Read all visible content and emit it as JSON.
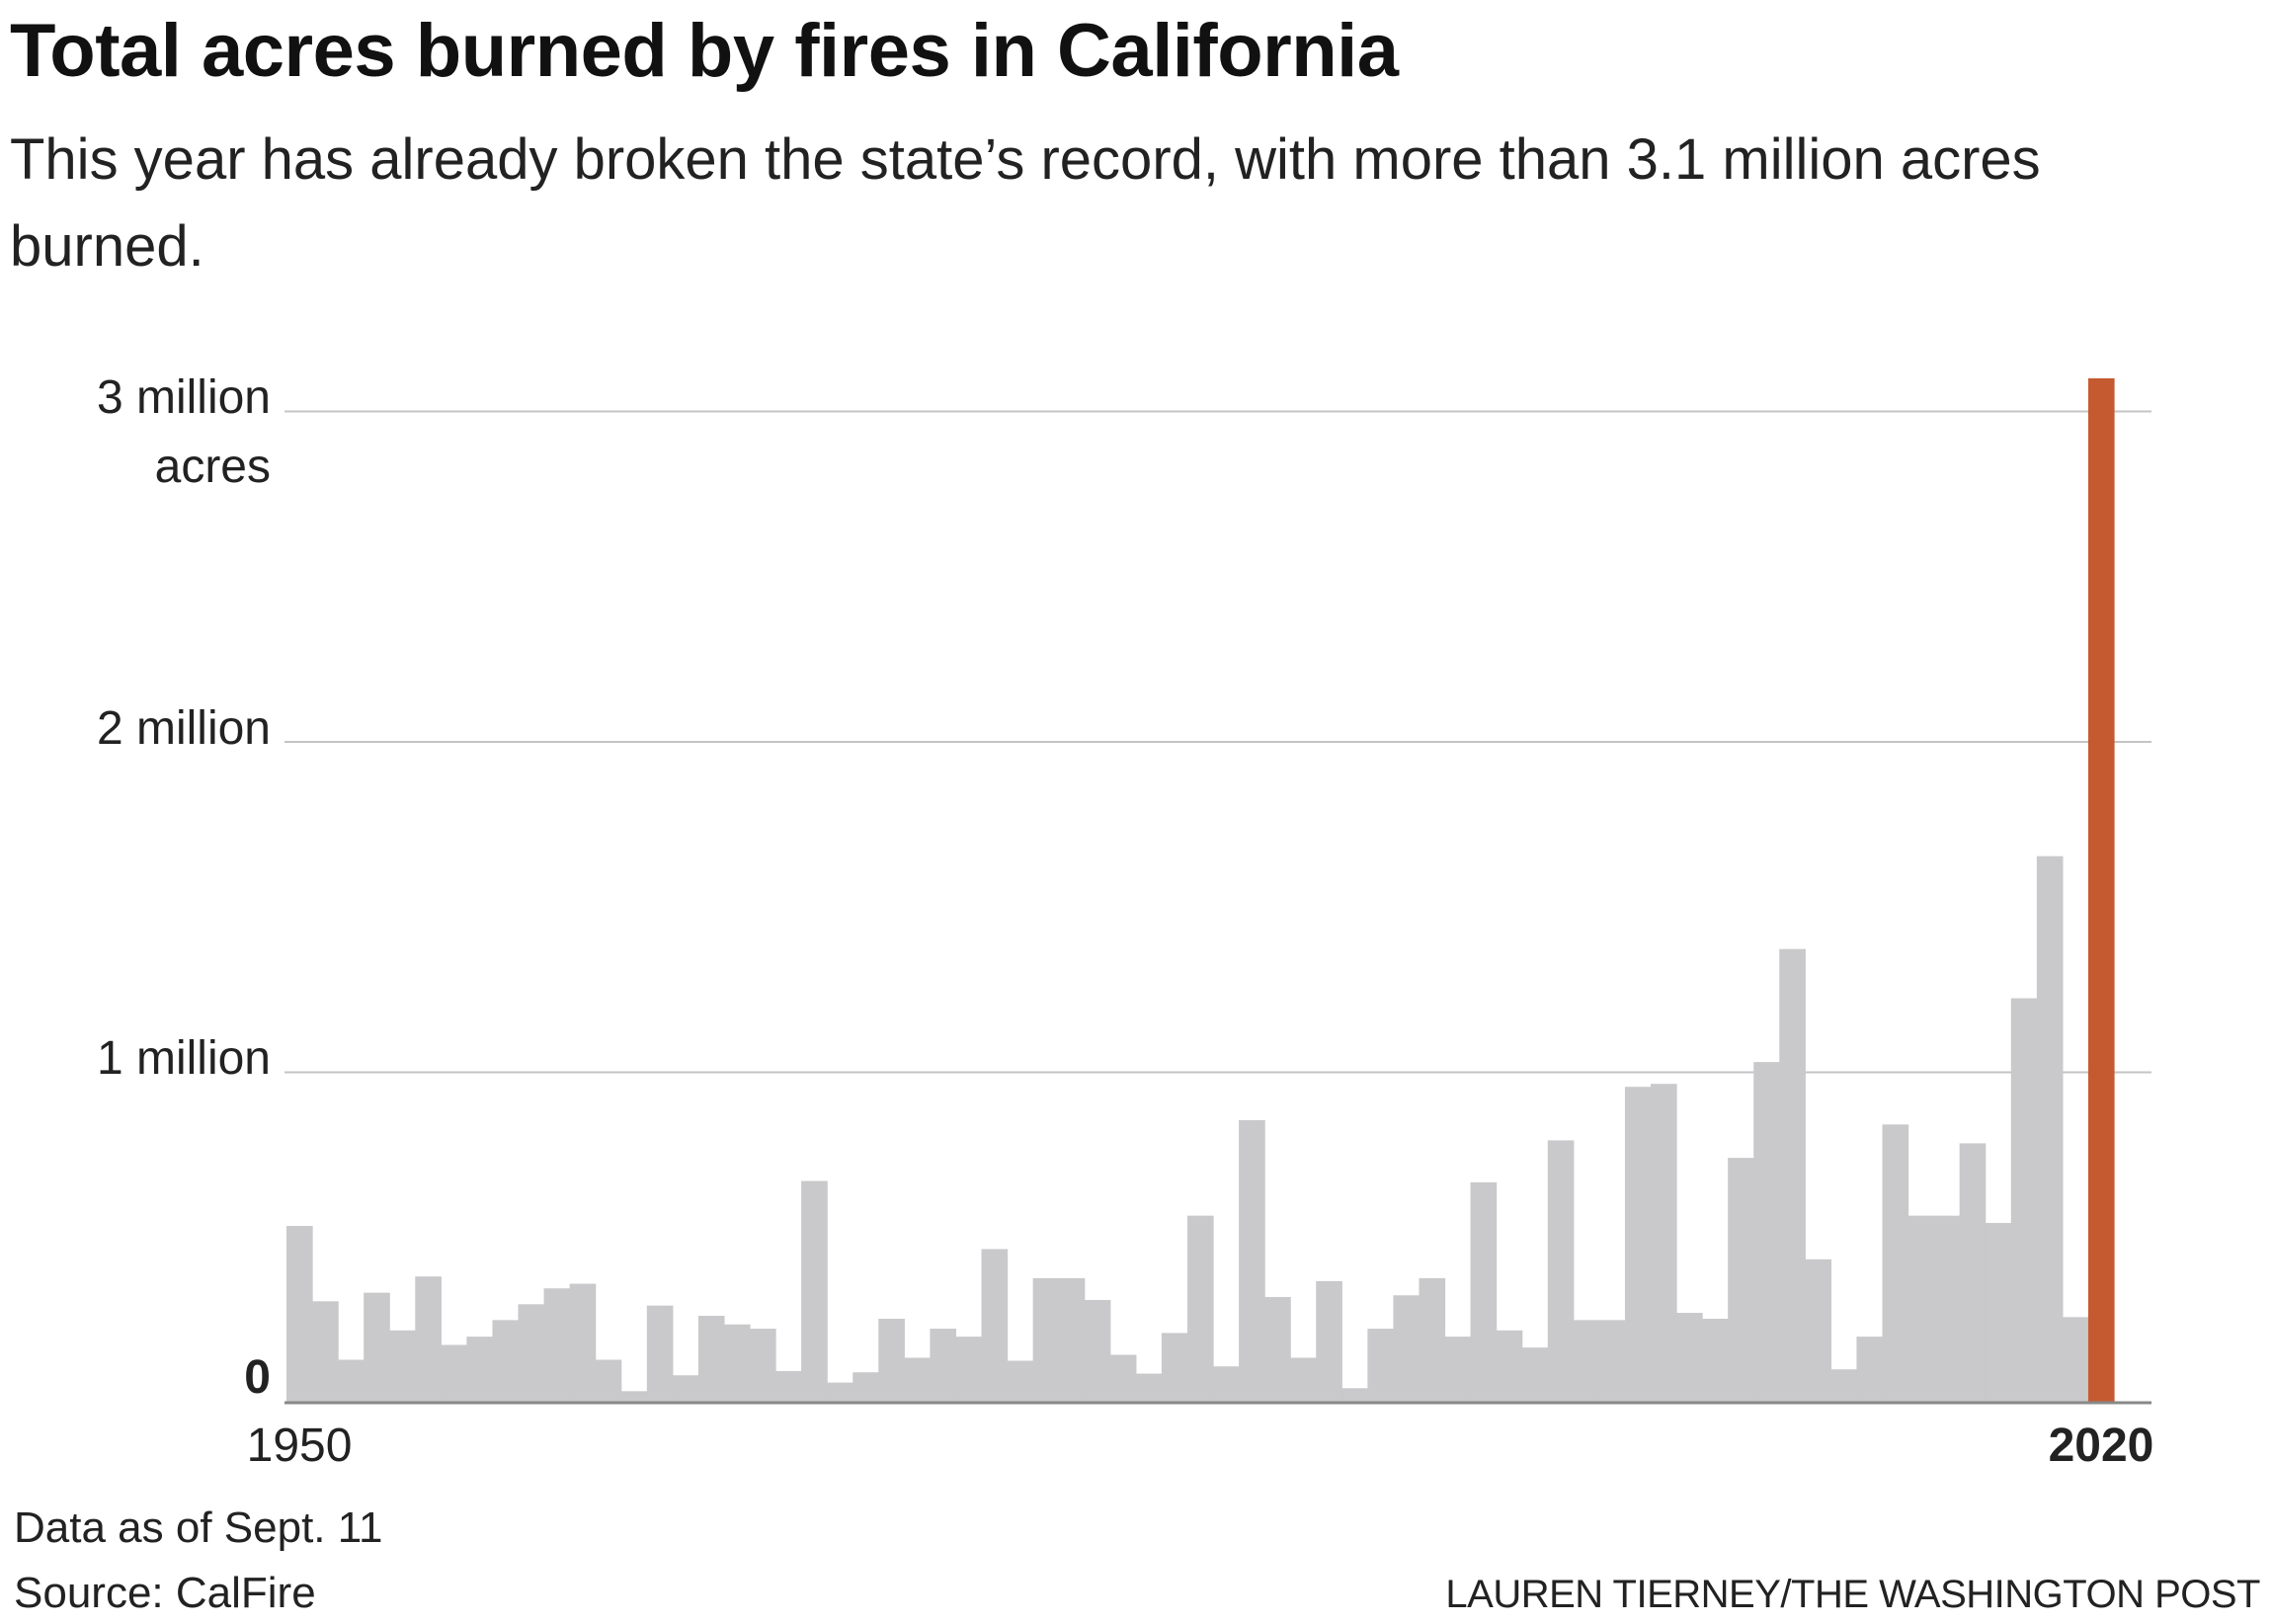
{
  "chart_data": {
    "type": "bar",
    "title": "Total acres burned by fires in California",
    "subtitle": "This year has already broken the state’s record, with more than 3.1 million acres burned.",
    "categories": [
      "1950",
      null,
      null,
      null,
      null,
      null,
      null,
      null,
      null,
      null,
      null,
      null,
      null,
      null,
      null,
      null,
      null,
      null,
      null,
      null,
      null,
      null,
      null,
      null,
      null,
      null,
      null,
      null,
      null,
      null,
      null,
      null,
      null,
      null,
      null,
      null,
      null,
      null,
      null,
      null,
      null,
      null,
      null,
      null,
      null,
      null,
      null,
      null,
      null,
      null,
      null,
      null,
      null,
      null,
      null,
      null,
      null,
      null,
      null,
      null,
      null,
      null,
      null,
      null,
      null,
      null,
      null,
      null,
      null,
      null,
      "2020"
    ],
    "values": [
      535000,
      307000,
      130000,
      333000,
      219000,
      382000,
      175000,
      200000,
      250000,
      298000,
      346000,
      360000,
      130000,
      35000,
      294000,
      83000,
      263000,
      237000,
      224000,
      96000,
      671000,
      61000,
      92000,
      254000,
      136000,
      224000,
      200000,
      465000,
      127000,
      377000,
      377000,
      311000,
      145000,
      88000,
      211000,
      566000,
      110000,
      855000,
      320000,
      136000,
      368000,
      44000,
      224000,
      325000,
      377000,
      200000,
      667000,
      219000,
      167000,
      794000,
      250000,
      250000,
      956000,
      965000,
      272000,
      254000,
      741000,
      1031000,
      1373000,
      434000,
      101000,
      200000,
      842000,
      566000,
      566000,
      785000,
      544000,
      1224000,
      1654000,
      259000,
      3100000
    ],
    "color": "#c9c9cb",
    "highlight_color": "#c55a30",
    "ylim": [
      0,
      3100000
    ],
    "yticks": [
      0,
      {
        "value": 1000000,
        "label": "1 million"
      },
      {
        "value": 2000000,
        "label": "2 million"
      },
      {
        "value": 3000000,
        "label": "3 million acres"
      }
    ],
    "grid": true,
    "notes": [
      "Data as of Sept. 11",
      "Source: CalFire"
    ],
    "credit": "LAUREN TIERNEY/THE WASHINGTON POST"
  }
}
